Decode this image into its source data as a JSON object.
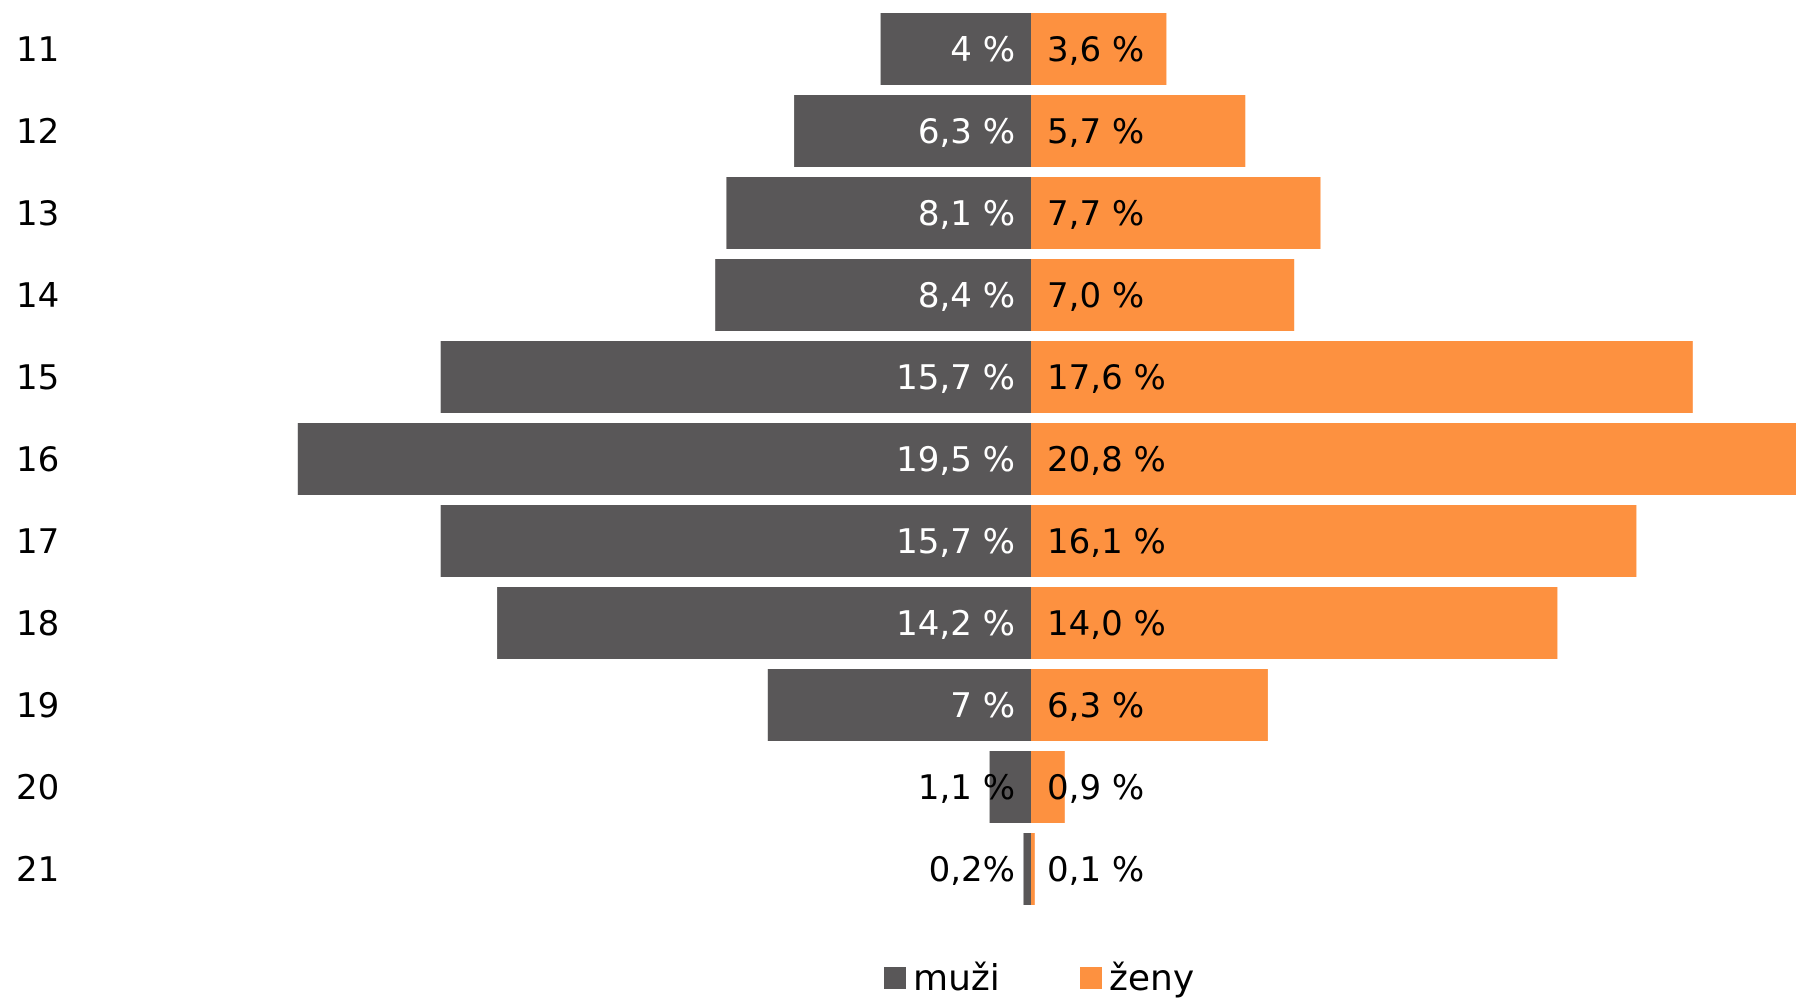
{
  "chart_data": {
    "type": "bar",
    "orientation": "horizontal-pyramid",
    "categories": [
      "11",
      "12",
      "13",
      "14",
      "15",
      "16",
      "17",
      "18",
      "19",
      "20",
      "21"
    ],
    "series": [
      {
        "name": "muži",
        "color": "#595758",
        "values": [
          4.0,
          6.3,
          8.1,
          8.4,
          15.7,
          19.5,
          15.7,
          14.2,
          7.0,
          1.1,
          0.2
        ],
        "labels": [
          "4 %",
          "6,3 %",
          "8,1 %",
          "8,4 %",
          "15,7 %",
          "19,5 %",
          "15,7 %",
          "14,2 %",
          "7 %",
          "1,1 %",
          "0,2%"
        ]
      },
      {
        "name": "ženy",
        "color": "#FD9140",
        "values": [
          3.6,
          5.7,
          7.7,
          7.0,
          17.6,
          20.8,
          16.1,
          14.0,
          6.3,
          0.9,
          0.1
        ],
        "labels": [
          "3,6 %",
          "5,7 %",
          "7,7 %",
          "7,0 %",
          "17,6 %",
          "20,8 %",
          "16,1 %",
          "14,0 %",
          "6,3 %",
          "0,9 %",
          "0,1 %"
        ]
      }
    ],
    "legend_position": "bottom",
    "grid": false
  }
}
